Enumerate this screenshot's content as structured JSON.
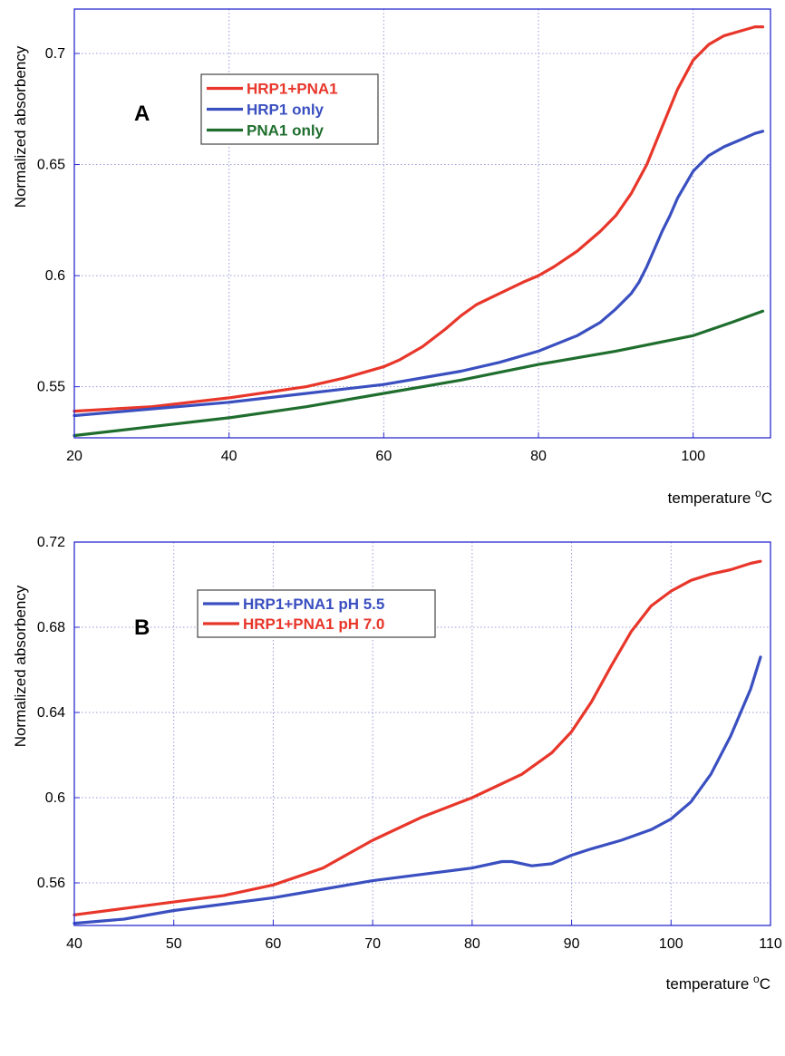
{
  "chart_data": [
    {
      "type": "line",
      "panel_label": "A",
      "ylabel": "Normalized absorbency",
      "xlabel": "temperature °C",
      "xlabel_text": "temperature ",
      "xlabel_deg": "o",
      "xlabel_unit": "C",
      "xlim": [
        20,
        110
      ],
      "ylim": [
        0.527,
        0.72
      ],
      "xticks": [
        20,
        40,
        60,
        80,
        100
      ],
      "yticks": [
        0.55,
        0.6,
        0.65,
        0.7
      ],
      "ytick_labels": [
        "0.55",
        "0.6",
        "0.65",
        "0.7"
      ],
      "grid": true,
      "legend_position": "top-left",
      "series": [
        {
          "name": "HRP1+PNA1",
          "color": "#e8362a",
          "x": [
            20,
            30,
            40,
            50,
            55,
            60,
            62,
            65,
            68,
            70,
            72,
            75,
            78,
            80,
            82,
            85,
            88,
            90,
            92,
            94,
            96,
            98,
            100,
            102,
            104,
            106,
            108,
            109
          ],
          "y": [
            0.539,
            0.541,
            0.545,
            0.55,
            0.554,
            0.559,
            0.562,
            0.568,
            0.576,
            0.582,
            0.587,
            0.592,
            0.597,
            0.6,
            0.604,
            0.611,
            0.62,
            0.627,
            0.637,
            0.65,
            0.667,
            0.684,
            0.697,
            0.704,
            0.708,
            0.71,
            0.712,
            0.712
          ]
        },
        {
          "name": "HRP1 only",
          "color": "#3a4fc0",
          "x": [
            20,
            30,
            40,
            50,
            60,
            70,
            75,
            80,
            85,
            88,
            90,
            92,
            93,
            94,
            95,
            96,
            97,
            98,
            100,
            102,
            104,
            106,
            108,
            109
          ],
          "y": [
            0.537,
            0.54,
            0.543,
            0.547,
            0.551,
            0.557,
            0.561,
            0.566,
            0.573,
            0.579,
            0.585,
            0.592,
            0.597,
            0.604,
            0.612,
            0.62,
            0.627,
            0.635,
            0.647,
            0.654,
            0.658,
            0.661,
            0.664,
            0.665
          ]
        },
        {
          "name": "PNA1 only",
          "color": "#1f6e2e",
          "x": [
            20,
            30,
            40,
            50,
            60,
            70,
            80,
            90,
            100,
            105,
            109
          ],
          "y": [
            0.528,
            0.532,
            0.536,
            0.541,
            0.547,
            0.553,
            0.56,
            0.566,
            0.573,
            0.579,
            0.584
          ]
        }
      ]
    },
    {
      "type": "line",
      "panel_label": "B",
      "ylabel": "Normalized absorbency",
      "xlabel": "temperature °C",
      "xlabel_text": "temperature ",
      "xlabel_deg": "o",
      "xlabel_unit": "C",
      "xlim": [
        40,
        110
      ],
      "ylim": [
        0.54,
        0.72
      ],
      "xticks": [
        40,
        50,
        60,
        70,
        80,
        90,
        100,
        110
      ],
      "yticks": [
        0.56,
        0.6,
        0.64,
        0.68,
        0.72
      ],
      "ytick_labels": [
        "0.56",
        "0.6",
        "0.64",
        "0.68",
        "0.72"
      ],
      "grid": true,
      "legend_position": "top-left",
      "series": [
        {
          "name": "HRP1+PNA1 pH 5.5",
          "color": "#3a4fc0",
          "x": [
            40,
            45,
            50,
            55,
            60,
            65,
            70,
            75,
            80,
            83,
            84,
            86,
            88,
            90,
            92,
            95,
            98,
            100,
            102,
            104,
            106,
            108,
            109
          ],
          "y": [
            0.541,
            0.543,
            0.547,
            0.55,
            0.553,
            0.557,
            0.561,
            0.564,
            0.567,
            0.57,
            0.57,
            0.568,
            0.569,
            0.573,
            0.576,
            0.58,
            0.585,
            0.59,
            0.598,
            0.611,
            0.629,
            0.651,
            0.666
          ]
        },
        {
          "name": "HRP1+PNA1 pH 7.0",
          "color": "#e8362a",
          "x": [
            40,
            45,
            50,
            55,
            60,
            65,
            70,
            75,
            80,
            85,
            88,
            90,
            92,
            94,
            96,
            98,
            100,
            102,
            104,
            106,
            108,
            109
          ],
          "y": [
            0.545,
            0.548,
            0.551,
            0.554,
            0.559,
            0.567,
            0.58,
            0.591,
            0.6,
            0.611,
            0.621,
            0.631,
            0.645,
            0.662,
            0.678,
            0.69,
            0.697,
            0.702,
            0.705,
            0.707,
            0.71,
            0.711
          ]
        }
      ]
    }
  ]
}
